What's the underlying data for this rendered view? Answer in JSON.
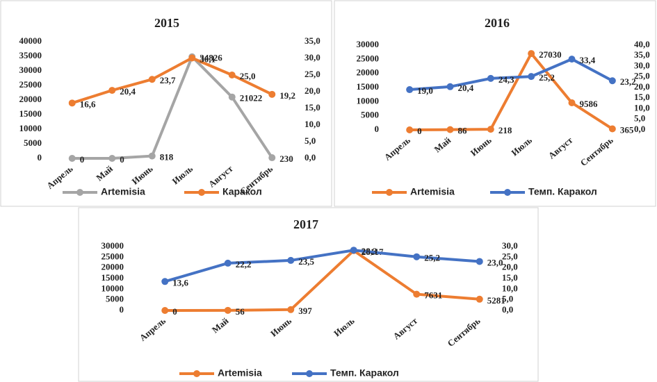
{
  "chart_data": [
    {
      "type": "line",
      "title": "2015",
      "categories": [
        "Апрель",
        "Май",
        "Июнь",
        "Июль",
        "Август",
        "Сентябрь"
      ],
      "series": [
        {
          "name": "Artemisia",
          "color": "#a5a5a5",
          "values": [
            0,
            0,
            818,
            34826,
            21022,
            230
          ]
        },
        {
          "name": "Каракол",
          "color": "#ed7d31",
          "axis": "y2",
          "values": [
            16.6,
            20.4,
            23.7,
            30.1,
            25.0,
            19.2
          ],
          "value_labels": [
            "16,6",
            "20,4",
            "23,7",
            "30,1",
            "25,0",
            "19,2"
          ]
        }
      ],
      "ylim": [
        0,
        40000
      ],
      "yticks": [
        0,
        5000,
        10000,
        15000,
        20000,
        25000,
        30000,
        35000,
        40000
      ],
      "y2lim": [
        0,
        35
      ],
      "y2ticks": [
        {
          "value": 0,
          "label": "0,0"
        },
        {
          "value": 5,
          "label": "5,0"
        },
        {
          "value": 10,
          "label": "10,0"
        },
        {
          "value": 15,
          "label": "15,0"
        },
        {
          "value": 20,
          "label": "20,0"
        },
        {
          "value": 25,
          "label": "25,0"
        },
        {
          "value": 30,
          "label": "30,0"
        },
        {
          "value": 35,
          "label": "35,0"
        }
      ]
    },
    {
      "type": "line",
      "title": "2016",
      "categories": [
        "Апрель",
        "Май",
        "Июнь",
        "Июль",
        "Август",
        "Сентябрь"
      ],
      "series": [
        {
          "name": "Artemisia",
          "color": "#ed7d31",
          "values": [
            0,
            86,
            218,
            27030,
            9586,
            365
          ]
        },
        {
          "name": "Темп. Каракол",
          "color": "#4472c4",
          "axis": "y2",
          "values": [
            19.0,
            20.4,
            24.3,
            25.2,
            33.4,
            23.2
          ],
          "value_labels": [
            "19,0",
            "20,4",
            "24,3",
            "25,2",
            "33,4",
            "23,2"
          ]
        }
      ],
      "ylim": [
        0,
        30000
      ],
      "yticks": [
        0,
        5000,
        10000,
        15000,
        20000,
        25000,
        30000
      ],
      "y2lim": [
        0,
        40
      ],
      "y2ticks": [
        {
          "value": 0,
          "label": "0,0"
        },
        {
          "value": 5,
          "label": "5,0"
        },
        {
          "value": 10,
          "label": "10,0"
        },
        {
          "value": 15,
          "label": "15,0"
        },
        {
          "value": 20,
          "label": "20,0"
        },
        {
          "value": 25,
          "label": "25,0"
        },
        {
          "value": 30,
          "label": "30,0"
        },
        {
          "value": 35,
          "label": "35,0"
        },
        {
          "value": 40,
          "label": "40,0"
        }
      ]
    },
    {
      "type": "line",
      "title": "2017",
      "categories": [
        "Апрель",
        "Май",
        "Июнь",
        "Июль",
        "Август",
        "Сентябрь"
      ],
      "series": [
        {
          "name": "Artemisia",
          "color": "#ed7d31",
          "values": [
            0,
            56,
            397,
            28117,
            7631,
            5281
          ]
        },
        {
          "name": "Темп. Каракол",
          "color": "#4472c4",
          "axis": "y2",
          "values": [
            13.6,
            22.2,
            23.5,
            28.3,
            25.2,
            23.0
          ],
          "value_labels": [
            "13,6",
            "22,2",
            "23,5",
            "28,3",
            "25,2",
            "23,0"
          ]
        }
      ],
      "ylim": [
        0,
        30000
      ],
      "yticks": [
        0,
        5000,
        10000,
        15000,
        20000,
        25000,
        30000
      ],
      "y2lim": [
        0,
        30
      ],
      "y2ticks": [
        {
          "value": 0,
          "label": "0,0"
        },
        {
          "value": 5,
          "label": "5,0"
        },
        {
          "value": 10,
          "label": "10,0"
        },
        {
          "value": 15,
          "label": "15,0"
        },
        {
          "value": 20,
          "label": "20,0"
        },
        {
          "value": 25,
          "label": "25,0"
        },
        {
          "value": 30,
          "label": "30,0"
        }
      ]
    }
  ]
}
